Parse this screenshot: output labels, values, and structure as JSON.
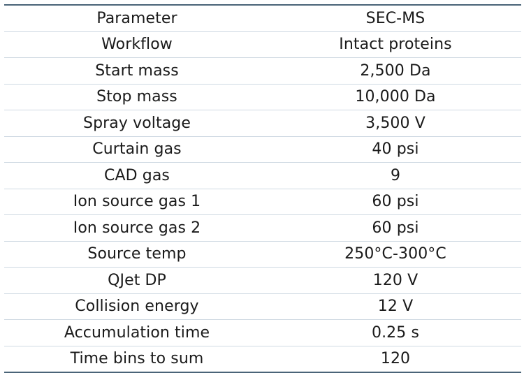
{
  "table": {
    "headers": [
      "Parameter",
      "SEC-MS"
    ],
    "rows": [
      [
        "Workflow",
        "Intact proteins"
      ],
      [
        "Start mass",
        "2,500 Da"
      ],
      [
        "Stop mass",
        "10,000 Da"
      ],
      [
        "Spray voltage",
        "3,500 V"
      ],
      [
        "Curtain gas",
        "40 psi"
      ],
      [
        "CAD gas",
        "9"
      ],
      [
        "Ion source gas 1",
        "60 psi"
      ],
      [
        "Ion source gas 2",
        "60 psi"
      ],
      [
        "Source temp",
        "250°C-300°C"
      ],
      [
        "QJet DP",
        "120 V"
      ],
      [
        "Collision energy",
        "12 V"
      ],
      [
        "Accumulation time",
        "0.25 s"
      ],
      [
        "Time bins to sum",
        "120"
      ]
    ]
  },
  "colors": {
    "rule_dark": "#4a6478",
    "rule_light": "#cfd9e2",
    "text": "#1a1a1a"
  }
}
